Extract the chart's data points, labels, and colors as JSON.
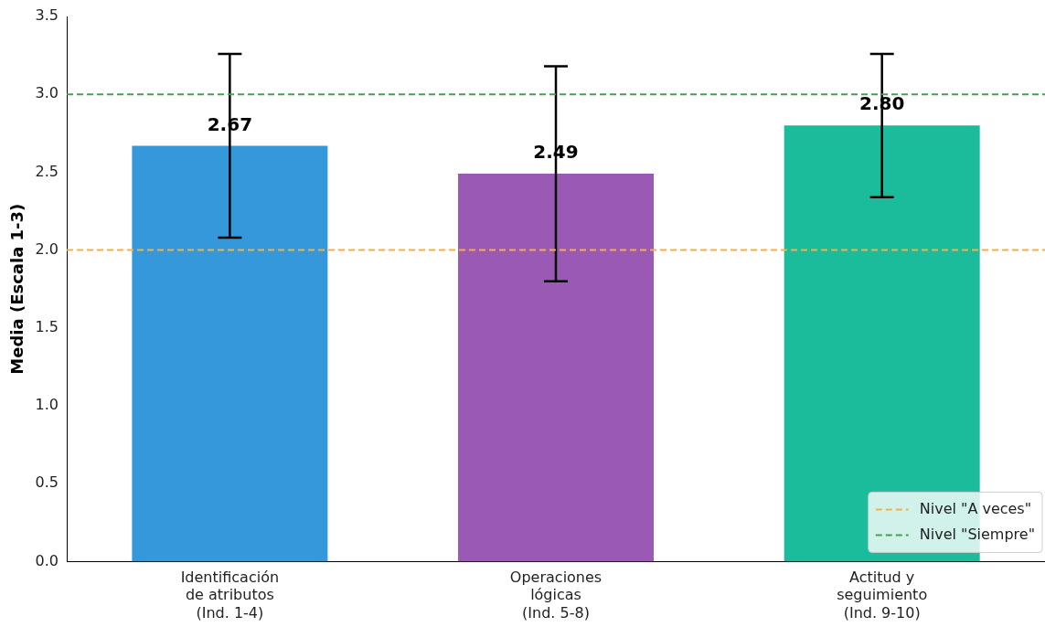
{
  "chart_data": {
    "type": "bar",
    "ylabel": "Media (Escala 1-3)",
    "categories": [
      "Identificación\nde atributos\n(Ind. 1-4)",
      "Operaciones\nlógicas\n(Ind. 5-8)",
      "Actitud y\nseguimiento\n(Ind. 9-10)"
    ],
    "values": [
      2.67,
      2.49,
      2.8
    ],
    "colors": [
      "#3498db",
      "#9b59b6",
      "#1abc9c"
    ],
    "errors": [
      0.59,
      0.69,
      0.46
    ],
    "value_labels": [
      "2.67",
      "2.49",
      "2.80"
    ],
    "ylim": [
      0,
      3.5
    ],
    "yticks": [
      {
        "value": 0,
        "label": "0.0"
      },
      0.5,
      {
        "value": 1,
        "label": "1.0"
      },
      1.5,
      {
        "value": 2,
        "label": "2.0"
      },
      2.5,
      {
        "value": 3,
        "label": "3.0"
      },
      3.5
    ],
    "ref_lines": [
      {
        "axis": "y",
        "value": 2,
        "label": "Nivel \"A veces\"",
        "color": "#f5b041",
        "line_style": "dashed"
      },
      {
        "axis": "y",
        "value": 3,
        "label": "Nivel \"Siempre\"",
        "color": "#4a9e4a",
        "line_style": "dashed"
      }
    ],
    "grid": false,
    "legend": "bottom right"
  }
}
